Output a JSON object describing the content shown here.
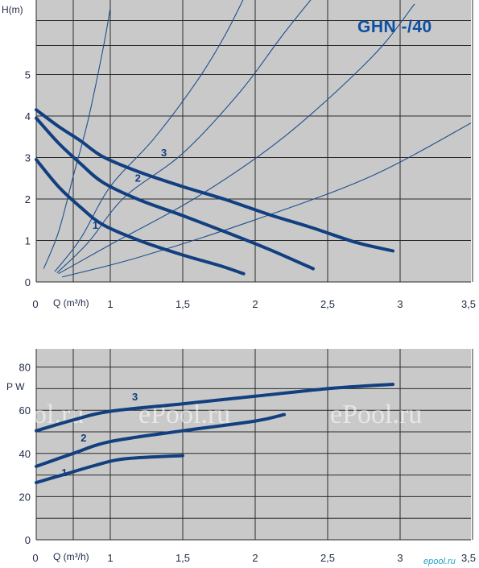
{
  "chart_data": [
    {
      "type": "line",
      "title": "GHN -/40",
      "ylabel": "H(m)",
      "xlabel": "Q (m³/h)",
      "xlim": [
        0,
        3.5
      ],
      "ylim": [
        0,
        6
      ],
      "x_ticks": [
        "0",
        "1",
        "1,5",
        "2",
        "2,5",
        "3",
        "3,5"
      ],
      "y_ticks": [
        "0",
        "1",
        "2",
        "3",
        "4",
        "5"
      ],
      "grid": true,
      "series": [
        {
          "name": "1",
          "x": [
            0,
            0.3,
            0.6,
            0.9,
            1.2,
            1.5,
            1.75,
            1.92
          ],
          "y": [
            2.95,
            2.3,
            1.8,
            1.38,
            1.0,
            0.65,
            0.4,
            0.2
          ]
        },
        {
          "name": "2",
          "x": [
            0,
            0.3,
            0.6,
            0.9,
            1.2,
            1.5,
            1.8,
            2.1,
            2.4
          ],
          "y": [
            3.95,
            3.35,
            2.85,
            2.4,
            1.98,
            1.6,
            1.2,
            0.78,
            0.32
          ]
        },
        {
          "name": "3",
          "x": [
            0,
            0.3,
            0.6,
            0.9,
            1.2,
            1.5,
            1.8,
            2.1,
            2.4,
            2.7,
            2.95
          ],
          "y": [
            4.15,
            3.75,
            3.4,
            3.02,
            2.65,
            2.3,
            1.98,
            1.62,
            1.3,
            0.95,
            0.75
          ]
        }
      ],
      "system_curves": [
        {
          "x": [
            0.1,
            0.3,
            0.5,
            0.7,
            0.9,
            1.0
          ],
          "y": [
            0.32,
            1.2,
            2.55,
            3.9,
            5.6,
            6.6
          ]
        },
        {
          "x": [
            0.25,
            0.6,
            1.0,
            1.3,
            1.6,
            1.8,
            2.0
          ],
          "y": [
            0.25,
            1.05,
            2.3,
            3.45,
            4.85,
            6.0,
            7.4
          ]
        },
        {
          "x": [
            0.28,
            0.7,
            1.1,
            1.5,
            1.9,
            2.2,
            2.5
          ],
          "y": [
            0.22,
            0.95,
            2.05,
            3.1,
            4.6,
            6.0,
            7.3
          ]
        },
        {
          "x": [
            0.3,
            1.0,
            1.6,
            2.2,
            2.8,
            3.1
          ],
          "y": [
            0.2,
            0.9,
            2.05,
            3.5,
            5.4,
            6.7
          ]
        },
        {
          "x": [
            0.35,
            1.2,
            2.0,
            2.8,
            3.5
          ],
          "y": [
            0.12,
            0.6,
            1.5,
            2.55,
            3.85
          ]
        }
      ]
    },
    {
      "type": "line",
      "ylabel": "P W",
      "xlabel": "Q (m³/h)",
      "xlim": [
        0,
        3.5
      ],
      "ylim": [
        0,
        90
      ],
      "x_ticks": [
        "0",
        "1",
        "1,5",
        "2",
        "2,5",
        "3",
        "3,5"
      ],
      "y_ticks": [
        "0",
        "20",
        "40",
        "60",
        "80"
      ],
      "grid": true,
      "series": [
        {
          "name": "1",
          "x": [
            0,
            0.4,
            0.8,
            1.1,
            1.5
          ],
          "y": [
            26.5,
            30.5,
            34.5,
            37.5,
            39
          ]
        },
        {
          "name": "2",
          "x": [
            0,
            0.5,
            1.0,
            1.5,
            2.0,
            2.2
          ],
          "y": [
            34,
            40,
            45.5,
            50.5,
            55,
            58
          ]
        },
        {
          "name": "3",
          "x": [
            0,
            0.5,
            1.0,
            1.5,
            2.0,
            2.5,
            2.95
          ],
          "y": [
            50.5,
            55.5,
            59.5,
            63,
            66.5,
            70,
            72
          ]
        }
      ]
    }
  ],
  "watermark": "ePool.ru",
  "brand": "epool.ru"
}
